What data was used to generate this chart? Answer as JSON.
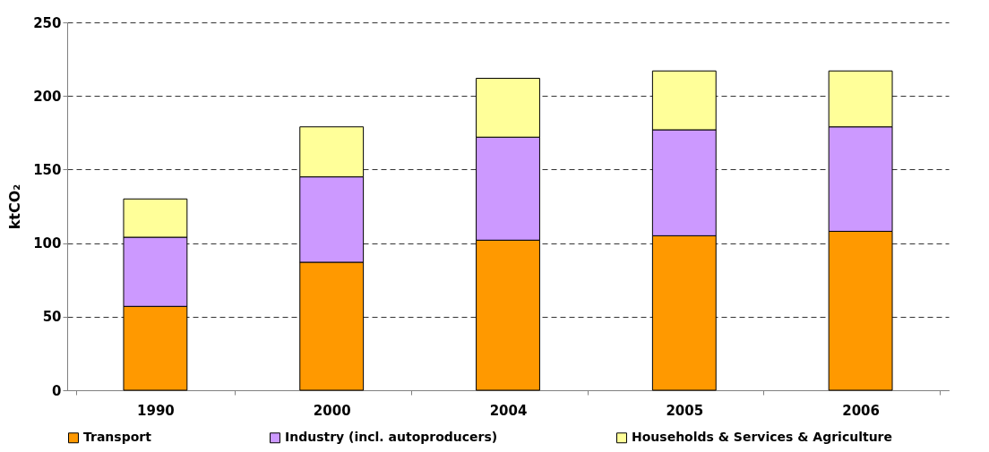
{
  "chart_data": {
    "type": "bar",
    "stacked": true,
    "ylabel": "ktCO₂",
    "categories": [
      "1990",
      "2000",
      "2004",
      "2005",
      "2006"
    ],
    "series": [
      {
        "name": "Transport",
        "color": "#ff9900",
        "values": [
          57,
          87,
          102,
          105,
          108
        ]
      },
      {
        "name": "Industry (incl. autoproducers)",
        "color": "#cc99ff",
        "values": [
          47,
          58,
          70,
          72,
          71
        ]
      },
      {
        "name": "Households & Services & Agriculture",
        "color": "#ffff99",
        "values": [
          26,
          34,
          40,
          40,
          38
        ]
      }
    ],
    "ylim": [
      0,
      250
    ],
    "yticks": [
      0,
      50,
      100,
      150,
      200,
      250
    ],
    "grid": "y",
    "line_style": "dashed",
    "legend": "bottom"
  }
}
